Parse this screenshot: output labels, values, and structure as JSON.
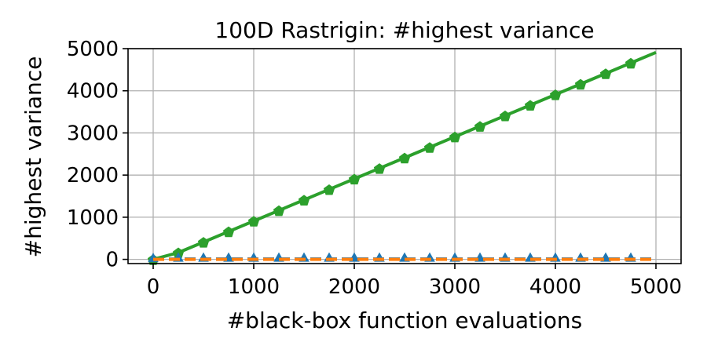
{
  "chart_data": {
    "type": "line",
    "title": "100D Rastrigin: #highest variance",
    "xlabel": "#black-box function evaluations",
    "ylabel": "#highest variance",
    "xlim": [
      -250,
      5250
    ],
    "ylim": [
      -100,
      5000
    ],
    "xticks": [
      "0",
      "1000",
      "2000",
      "3000",
      "4000",
      "5000"
    ],
    "yticks": [
      "0",
      "1000",
      "2000",
      "3000",
      "4000",
      "5000"
    ],
    "grid": true,
    "series": [
      {
        "color": "#2ca02c",
        "linestyle": "solid",
        "marker": "pentagon",
        "x": [
          0,
          250,
          500,
          750,
          1000,
          1250,
          1500,
          1750,
          2000,
          2250,
          2500,
          2750,
          3000,
          3250,
          3500,
          3750,
          4000,
          4250,
          4500,
          4750,
          5000
        ],
        "y": [
          0,
          160,
          410,
          660,
          910,
          1160,
          1410,
          1660,
          1910,
          2160,
          2410,
          2660,
          2910,
          3160,
          3410,
          3660,
          3910,
          4160,
          4410,
          4660,
          4910
        ],
        "marker_every_until": 4750
      },
      {
        "color": "#1f77b4",
        "linestyle": "dashed",
        "marker": "triangle",
        "x": [
          0,
          250,
          500,
          750,
          1000,
          1250,
          1500,
          1750,
          2000,
          2250,
          2500,
          2750,
          3000,
          3250,
          3500,
          3750,
          4000,
          4250,
          4500,
          4750,
          5000
        ],
        "y": [
          0,
          10,
          10,
          10,
          10,
          10,
          10,
          10,
          10,
          10,
          10,
          10,
          10,
          10,
          10,
          10,
          10,
          10,
          10,
          10,
          10
        ],
        "marker_every_until": 4750
      },
      {
        "color": "#ff7f0e",
        "linestyle": "dashed",
        "marker": "none",
        "x": [
          0,
          250,
          500,
          750,
          1000,
          1250,
          1500,
          1750,
          2000,
          2250,
          2500,
          2750,
          3000,
          3250,
          3500,
          3750,
          4000,
          4250,
          4500,
          4750,
          5000
        ],
        "y": [
          0,
          0,
          0,
          0,
          0,
          0,
          0,
          0,
          0,
          0,
          0,
          0,
          0,
          0,
          0,
          0,
          0,
          0,
          0,
          0,
          0
        ],
        "marker_every_until": 0
      }
    ]
  }
}
